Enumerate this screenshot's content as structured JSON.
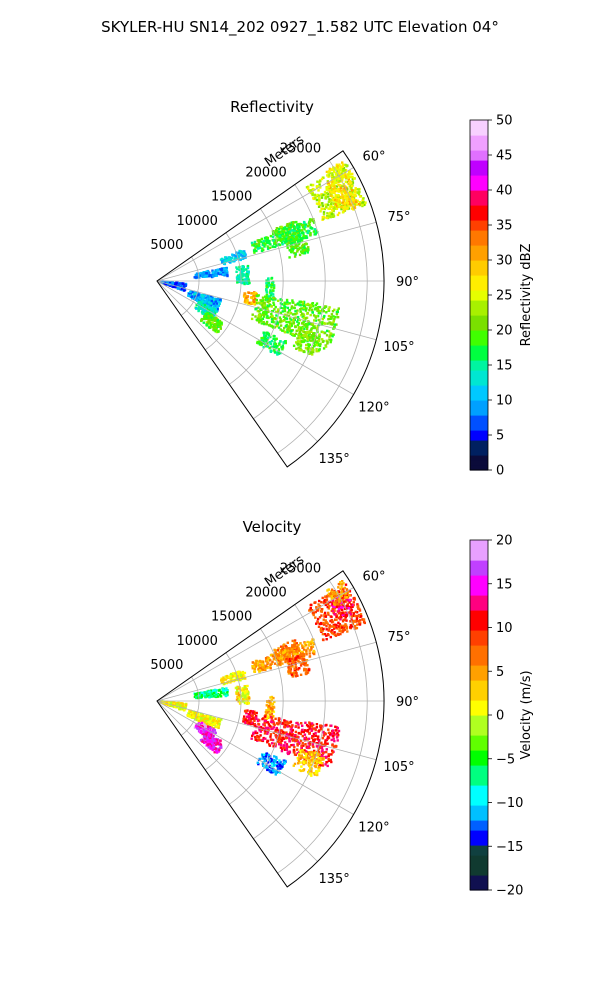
{
  "suptitle": "SKYLER-HU  SN14_202  0927_1.582 UTC Elevation 04°",
  "chart_data": [
    {
      "type": "heatmap",
      "title": "Reflectivity",
      "radial_label": "Meters",
      "radial_ticks": [
        5000,
        10000,
        15000,
        20000,
        25000
      ],
      "radial_tick_labels": [
        "5000",
        "10000",
        "15000",
        "20000",
        "25000"
      ],
      "angle_ticks": [
        60,
        75,
        90,
        105,
        120,
        135
      ],
      "angle_tick_labels": [
        "60°",
        "75°",
        "90°",
        "105°",
        "120°",
        "135°"
      ],
      "theta_range_deg": [
        55,
        145
      ],
      "r_range": [
        0,
        27000
      ],
      "grid": true,
      "colorbar": {
        "label": "Reflectivity dBZ",
        "min": 0,
        "max": 50,
        "ticks": [
          0,
          5,
          10,
          15,
          20,
          25,
          30,
          35,
          40,
          45,
          50
        ],
        "tick_labels": [
          "0",
          "5",
          "10",
          "15",
          "20",
          "25",
          "30",
          "35",
          "40",
          "45",
          "50"
        ],
        "colormap": "pyart_NWSRef"
      },
      "echo_regions": [
        {
          "theta": [
            58,
            70
          ],
          "r": [
            21000,
            26500
          ],
          "value": 24
        },
        {
          "theta": [
            60,
            70
          ],
          "r": [
            23000,
            26000
          ],
          "value": 28
        },
        {
          "theta": [
            57,
            62
          ],
          "r": [
            24000,
            26500
          ],
          "value": 26
        },
        {
          "theta": [
            66,
            72
          ],
          "r": [
            15000,
            18000
          ],
          "value": 20
        },
        {
          "theta": [
            68,
            74
          ],
          "r": [
            12000,
            20000
          ],
          "value": 18
        },
        {
          "theta": [
            72,
            80
          ],
          "r": [
            16000,
            18500
          ],
          "value": 19
        },
        {
          "theta": [
            70,
            76
          ],
          "r": [
            8000,
            11000
          ],
          "value": 11
        },
        {
          "theta": [
            79,
            86
          ],
          "r": [
            4500,
            8500
          ],
          "value": 9
        },
        {
          "theta": [
            80,
            92
          ],
          "r": [
            9500,
            11000
          ],
          "value": 15
        },
        {
          "theta": [
            88,
            100
          ],
          "r": [
            13000,
            14000
          ],
          "value": 17
        },
        {
          "theta": [
            96,
            104
          ],
          "r": [
            10500,
            12000
          ],
          "value": 30
        },
        {
          "theta": [
            98,
            112
          ],
          "r": [
            12000,
            22000
          ],
          "value": 20
        },
        {
          "theta": [
            106,
            116
          ],
          "r": [
            4000,
            8000
          ],
          "value": 10
        },
        {
          "theta": [
            116,
            126
          ],
          "r": [
            5500,
            8000
          ],
          "value": 14
        },
        {
          "theta": [
            122,
            132
          ],
          "r": [
            7000,
            9500
          ],
          "value": 20
        },
        {
          "theta": [
            115,
            122
          ],
          "r": [
            14000,
            17000
          ],
          "value": 17
        },
        {
          "theta": [
            108,
            116
          ],
          "r": [
            18000,
            21000
          ],
          "value": 21
        },
        {
          "theta": [
            95,
            110
          ],
          "r": [
            500,
            3500
          ],
          "value": 7
        }
      ]
    },
    {
      "type": "heatmap",
      "title": "Velocity",
      "radial_label": "Meters",
      "radial_ticks": [
        5000,
        10000,
        15000,
        20000,
        25000
      ],
      "radial_tick_labels": [
        "5000",
        "10000",
        "15000",
        "20000",
        "25000"
      ],
      "angle_ticks": [
        60,
        75,
        90,
        105,
        120,
        135
      ],
      "angle_tick_labels": [
        "60°",
        "75°",
        "90°",
        "105°",
        "120°",
        "135°"
      ],
      "theta_range_deg": [
        55,
        145
      ],
      "r_range": [
        0,
        27000
      ],
      "grid": true,
      "colorbar": {
        "label": "Velocity (m/s)",
        "min": -20,
        "max": 20,
        "ticks": [
          -20,
          -15,
          -10,
          -5,
          0,
          5,
          10,
          15,
          20
        ],
        "tick_labels": [
          "−20",
          "−15",
          "−10",
          "−5",
          "0",
          "5",
          "10",
          "15",
          "20"
        ],
        "colormap": "pyart_BuDRd18"
      },
      "echo_regions": [
        {
          "theta": [
            58,
            70
          ],
          "r": [
            21000,
            26500
          ],
          "value": 9
        },
        {
          "theta": [
            60,
            66
          ],
          "r": [
            23500,
            26000
          ],
          "value": 12
        },
        {
          "theta": [
            57,
            62
          ],
          "r": [
            24000,
            26500
          ],
          "value": 5
        },
        {
          "theta": [
            66,
            72
          ],
          "r": [
            15000,
            18000
          ],
          "value": 7
        },
        {
          "theta": [
            68,
            74
          ],
          "r": [
            12000,
            20000
          ],
          "value": 5
        },
        {
          "theta": [
            72,
            80
          ],
          "r": [
            16000,
            18500
          ],
          "value": 8
        },
        {
          "theta": [
            70,
            76
          ],
          "r": [
            8000,
            11000
          ],
          "value": 1
        },
        {
          "theta": [
            79,
            86
          ],
          "r": [
            4500,
            8500
          ],
          "value": -7
        },
        {
          "theta": [
            80,
            92
          ],
          "r": [
            9500,
            11000
          ],
          "value": 2
        },
        {
          "theta": [
            88,
            100
          ],
          "r": [
            13000,
            14000
          ],
          "value": 4
        },
        {
          "theta": [
            96,
            104
          ],
          "r": [
            10500,
            12000
          ],
          "value": 11
        },
        {
          "theta": [
            98,
            112
          ],
          "r": [
            12000,
            22000
          ],
          "value": 11
        },
        {
          "theta": [
            106,
            116
          ],
          "r": [
            4000,
            8000
          ],
          "value": 1
        },
        {
          "theta": [
            116,
            126
          ],
          "r": [
            5500,
            8000
          ],
          "value": 16
        },
        {
          "theta": [
            122,
            132
          ],
          "r": [
            7000,
            9500
          ],
          "value": 15
        },
        {
          "theta": [
            115,
            122
          ],
          "r": [
            14000,
            17000
          ],
          "value": -12
        },
        {
          "theta": [
            108,
            116
          ],
          "r": [
            18000,
            21000
          ],
          "value": 3
        },
        {
          "theta": [
            95,
            110
          ],
          "r": [
            500,
            3500
          ],
          "value": 1
        }
      ]
    }
  ]
}
